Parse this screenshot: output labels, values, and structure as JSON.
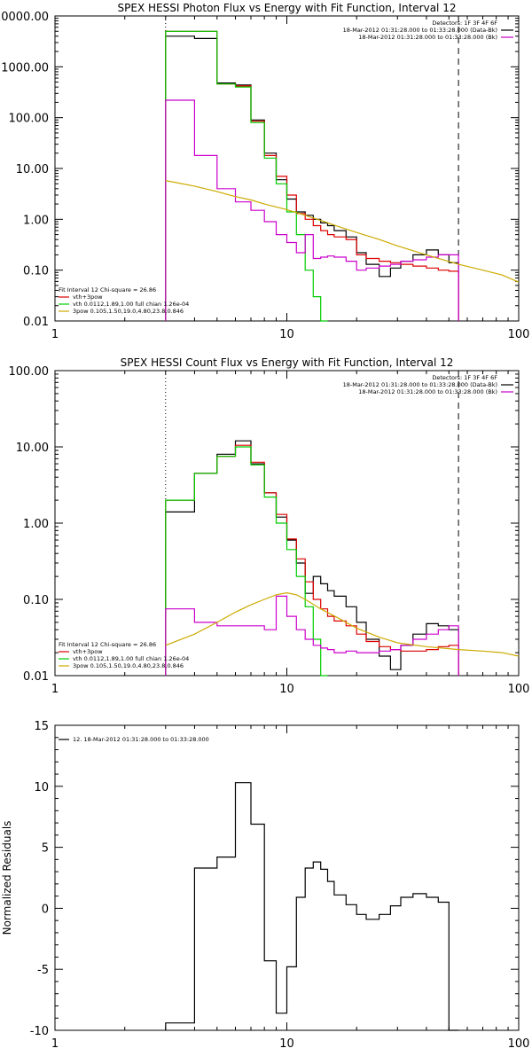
{
  "chart_data": [
    {
      "type": "line",
      "title": "SPEX HESSI Photon Flux vs Energy with Fit Function, Interval 12",
      "xscale": "log",
      "yscale": "log",
      "xlim": [
        1,
        100
      ],
      "ylim": [
        0.01,
        10000
      ],
      "x_ticks": [
        "1",
        "10",
        "100"
      ],
      "y_ticks": [
        "0.01",
        "0.10",
        "1.00",
        "10.00",
        "100.00",
        "1000.00",
        "10000.00"
      ],
      "x_ticks_values": [
        1,
        10,
        100
      ],
      "y_ticks_values": [
        0.01,
        0.1,
        1,
        10,
        100,
        1000,
        10000
      ],
      "legend_right": [
        {
          "text": "Detectors: 1F 3F 4F 6F",
          "color": "#000000",
          "line": false
        },
        {
          "text": "18-Mar-2012 01:31:28.000 to 01:33:28.000 (Data-Bk)",
          "color": "#000000",
          "line": true
        },
        {
          "text": "18-Mar-2012 01:31:28.000 to 01:33:28.000 (Bk)",
          "color": "#cc00cc",
          "line": true
        }
      ],
      "legend_left": [
        {
          "text": "Fit Interval 12   Chi-square = 26.86",
          "color": "#000000",
          "line": false
        },
        {
          "text": "vth+3pow",
          "color": "#dd0000",
          "line": true
        },
        {
          "text": "vth 0.0112,1.89,1.00  full chian 1.26e-04",
          "color": "#00cc00",
          "line": true
        },
        {
          "text": "3pow 0.105,1.50,19.0,4.80,23.8,0.846",
          "color": "#ccaa00",
          "line": true
        }
      ],
      "vlines": [
        {
          "x": 3.0,
          "style": "dotted",
          "color": "#000000"
        },
        {
          "x": 55.0,
          "style": "dashed",
          "color": "#000000"
        }
      ],
      "bin_edges": [
        3,
        4,
        5,
        6,
        7,
        8,
        9,
        10,
        11,
        12,
        13,
        14,
        15,
        16,
        18,
        20,
        22,
        25,
        28,
        31,
        35,
        40,
        45,
        50,
        55
      ],
      "series": [
        {
          "name": "Data-Bk",
          "color": "#000000",
          "values": [
            4000,
            3600,
            480,
            440,
            90,
            20,
            6,
            2.5,
            1.4,
            1.2,
            1.0,
            0.85,
            0.75,
            0.6,
            0.45,
            0.22,
            0.13,
            0.075,
            0.11,
            0.15,
            0.2,
            0.25,
            0.2,
            0.14
          ]
        },
        {
          "name": "vth+3pow",
          "color": "#dd0000",
          "values": [
            5000,
            5000,
            460,
            420,
            85,
            18,
            7,
            3,
            1.3,
            1.0,
            0.75,
            0.6,
            0.5,
            0.45,
            0.4,
            0.2,
            0.17,
            0.15,
            0.14,
            0.13,
            0.12,
            0.11,
            0.1,
            0.095
          ]
        },
        {
          "name": "vth",
          "color": "#00cc00",
          "values": [
            5000,
            5000,
            460,
            400,
            80,
            16,
            5,
            1.4,
            0.5,
            0.1,
            0.03,
            0.01
          ]
        },
        {
          "name": "Bk",
          "color": "#cc00cc",
          "values": [
            220,
            18,
            4,
            2.2,
            1.5,
            0.9,
            0.5,
            0.35,
            0.22,
            0.5,
            0.17,
            0.18,
            0.19,
            0.18,
            0.15,
            0.1,
            0.11,
            0.12,
            0.13,
            0.15,
            0.16,
            0.18,
            0.2,
            0.2
          ]
        }
      ],
      "curves": [
        {
          "name": "3pow",
          "color": "#ccaa00",
          "x": [
            3,
            4,
            5,
            6,
            7,
            8,
            10,
            12,
            14,
            17,
            20,
            25,
            30,
            40,
            55,
            70,
            85,
            100
          ],
          "y": [
            5.8,
            4.5,
            3.5,
            2.8,
            2.4,
            2.0,
            1.55,
            1.2,
            0.95,
            0.7,
            0.55,
            0.4,
            0.3,
            0.2,
            0.13,
            0.1,
            0.08,
            0.058
          ]
        }
      ]
    },
    {
      "type": "line",
      "title": "SPEX HESSI Count Flux vs Energy with Fit Function, Interval 12",
      "xscale": "log",
      "yscale": "log",
      "xlim": [
        1,
        100
      ],
      "ylim": [
        0.01,
        100
      ],
      "x_ticks": [
        "1",
        "10",
        "100"
      ],
      "y_ticks": [
        "0.01",
        "0.10",
        "1.00",
        "10.00",
        "100.00"
      ],
      "x_ticks_values": [
        1,
        10,
        100
      ],
      "y_ticks_values": [
        0.01,
        0.1,
        1,
        10,
        100
      ],
      "legend_right": [
        {
          "text": "Detectors: 1F 3F 4F 6F",
          "color": "#000000",
          "line": false
        },
        {
          "text": "18-Mar-2012 01:31:28.000 to 01:33:28.000 (Data-Bk)",
          "color": "#000000",
          "line": true
        },
        {
          "text": "18-Mar-2012 01:31:28.000 to 01:33:28.000 (Bk)",
          "color": "#cc00cc",
          "line": true
        }
      ],
      "legend_left": [
        {
          "text": "Fit Interval 12   Chi-square = 26.86",
          "color": "#000000",
          "line": false
        },
        {
          "text": "vth+3pow",
          "color": "#dd0000",
          "line": true
        },
        {
          "text": "vth 0.0112,1.89,1.00  full chian 1.26e-04",
          "color": "#00cc00",
          "line": true
        },
        {
          "text": "3pow 0.105,1.50,19.0,4.80,23.8,0.846",
          "color": "#ccaa00",
          "line": true
        }
      ],
      "vlines": [
        {
          "x": 3.0,
          "style": "dotted",
          "color": "#000000"
        },
        {
          "x": 55.0,
          "style": "dashed",
          "color": "#000000"
        }
      ],
      "bin_edges": [
        3,
        4,
        5,
        6,
        7,
        8,
        9,
        10,
        11,
        12,
        13,
        14,
        15,
        16,
        18,
        20,
        22,
        25,
        28,
        31,
        35,
        40,
        45,
        50,
        55
      ],
      "series": [
        {
          "name": "Data-Bk",
          "color": "#000000",
          "values": [
            1.4,
            4.5,
            8.0,
            12.0,
            6.0,
            2.5,
            1.2,
            0.6,
            0.3,
            0.12,
            0.2,
            0.16,
            0.13,
            0.11,
            0.08,
            0.05,
            0.03,
            0.018,
            0.012,
            0.025,
            0.035,
            0.048,
            0.045,
            0.04
          ]
        },
        {
          "name": "vth+3pow",
          "color": "#dd0000",
          "values": [
            2.0,
            4.5,
            7.5,
            10.5,
            6.3,
            2.5,
            1.3,
            0.62,
            0.34,
            0.17,
            0.1,
            0.075,
            0.06,
            0.052,
            0.045,
            0.035,
            0.028,
            0.024,
            0.022,
            0.021,
            0.021,
            0.022,
            0.024,
            0.025
          ]
        },
        {
          "name": "vth",
          "color": "#00cc00",
          "values": [
            2.0,
            4.5,
            7.5,
            10.0,
            5.8,
            2.2,
            1.0,
            0.45,
            0.2,
            0.08,
            0.03,
            0.01
          ]
        },
        {
          "name": "Bk",
          "color": "#cc00cc",
          "values": [
            0.075,
            0.05,
            0.045,
            0.045,
            0.045,
            0.04,
            0.11,
            0.06,
            0.04,
            0.03,
            0.025,
            0.023,
            0.022,
            0.02,
            0.021,
            0.02,
            0.02,
            0.021,
            0.022,
            0.025,
            0.03,
            0.035,
            0.04,
            0.045
          ]
        }
      ],
      "curves": [
        {
          "name": "3pow",
          "color": "#ccaa00",
          "x": [
            3,
            4,
            5,
            6,
            7,
            8,
            9,
            10,
            11,
            12,
            14,
            17,
            20,
            25,
            30,
            40,
            55,
            70,
            85,
            100
          ],
          "y": [
            0.025,
            0.035,
            0.05,
            0.068,
            0.085,
            0.1,
            0.115,
            0.122,
            0.115,
            0.1,
            0.075,
            0.055,
            0.042,
            0.032,
            0.027,
            0.024,
            0.022,
            0.021,
            0.02,
            0.018
          ]
        }
      ]
    },
    {
      "type": "line",
      "title": "",
      "ylabel": "Normalized Residuals",
      "xscale": "log",
      "yscale": "linear",
      "xlim": [
        1,
        100
      ],
      "ylim": [
        -10,
        15
      ],
      "x_ticks": [
        "1",
        "10",
        "100"
      ],
      "y_ticks": [
        "-10",
        "-5",
        "0",
        "5",
        "10",
        "15"
      ],
      "x_ticks_values": [
        1,
        10,
        100
      ],
      "y_ticks_values": [
        -10,
        -5,
        0,
        5,
        10,
        15
      ],
      "legend_right": [],
      "legend_left": [
        {
          "text": "12. 18-Mar-2012 01:31:28.000 to 01:33:28.000",
          "color": "#000000",
          "line": true
        }
      ],
      "vlines": [],
      "bin_edges": [
        3,
        4,
        5,
        6,
        7,
        8,
        9,
        10,
        11,
        12,
        13,
        14,
        15,
        16,
        18,
        20,
        22,
        25,
        28,
        31,
        35,
        40,
        45,
        50,
        55
      ],
      "series": [
        {
          "name": "residuals",
          "color": "#000000",
          "values": [
            -9.4,
            3.3,
            4.2,
            10.3,
            6.9,
            -4.3,
            -8.6,
            -4.8,
            0.9,
            3.3,
            3.8,
            3.2,
            2.2,
            1.1,
            0.3,
            -0.5,
            -0.9,
            -0.5,
            0.2,
            0.9,
            1.2,
            0.9,
            0.5,
            -10
          ]
        }
      ],
      "curves": []
    }
  ]
}
